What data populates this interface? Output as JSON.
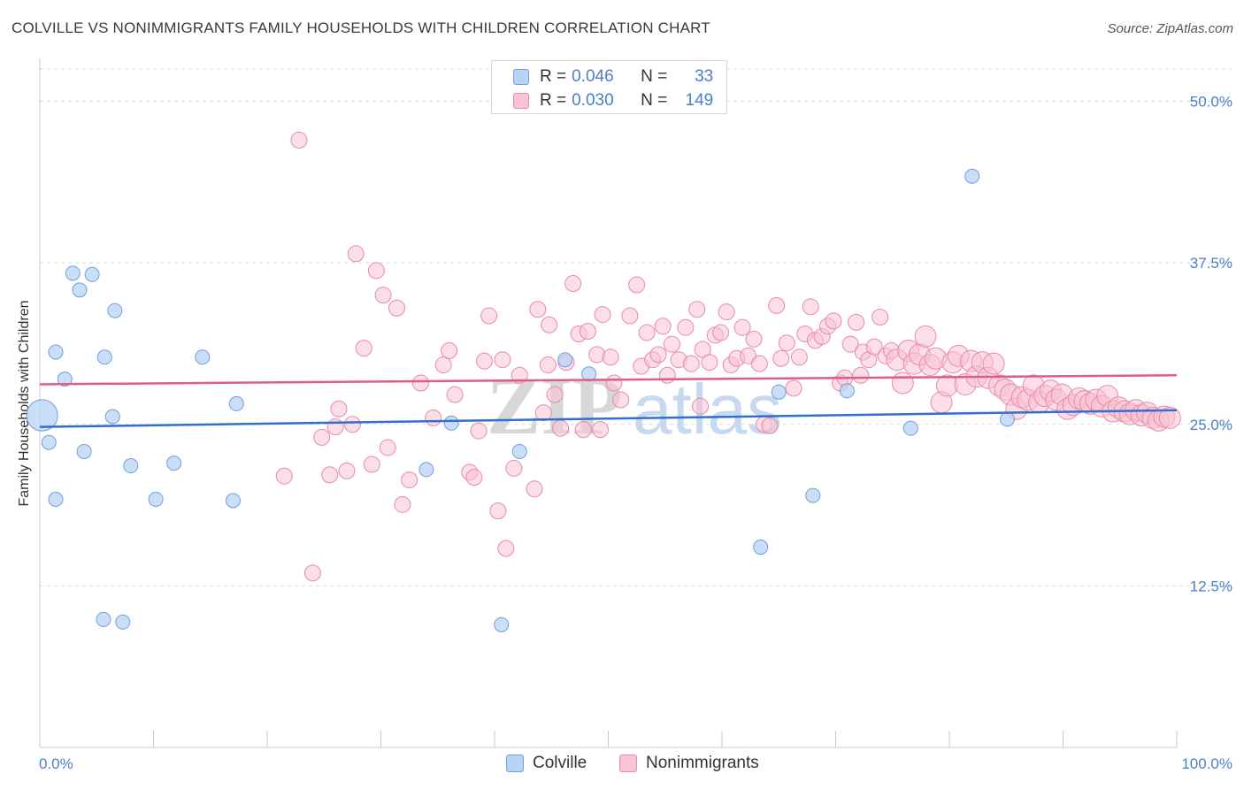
{
  "header": {
    "title": "COLVILLE VS NONIMMIGRANTS FAMILY HOUSEHOLDS WITH CHILDREN CORRELATION CHART",
    "source": "Source: ZipAtlas.com"
  },
  "watermark": {
    "part1": "ZIP",
    "part2": "atlas"
  },
  "legend_top": {
    "rows": [
      {
        "r_label": "R =",
        "r_value": "0.046",
        "n_label": "N =",
        "n_value": "33"
      },
      {
        "r_label": "R =",
        "r_value": "0.030",
        "n_label": "N =",
        "n_value": "149"
      }
    ]
  },
  "legend_bottom": {
    "items": [
      "Colville",
      "Nonimmigrants"
    ]
  },
  "colors": {
    "colville_fill": "#b9d3f4",
    "colville_stroke": "#6f9fdc",
    "colville_line": "#2f6fcf",
    "nonimm_fill": "#f8c3d2",
    "nonimm_stroke": "#e98aa8",
    "nonimm_line": "#e05c88",
    "axis_text": "#4a7fc7",
    "grid": "#d9d9d9"
  },
  "chart_data": {
    "type": "scatter",
    "title": "COLVILLE VS NONIMMIGRANTS FAMILY HOUSEHOLDS WITH CHILDREN CORRELATION CHART",
    "xlabel": "",
    "ylabel": "Family Households with Children",
    "xlim": [
      0,
      100
    ],
    "ylim": [
      0,
      52.5
    ],
    "x_tick_labels": [
      "0.0%",
      "100.0%"
    ],
    "y_ticks": [
      12.5,
      25.0,
      37.5,
      50.0
    ],
    "y_tick_labels": [
      "12.5%",
      "25.0%",
      "37.5%",
      "50.0%"
    ],
    "grid": true,
    "legend_position": "top-center",
    "series": [
      {
        "name": "Colville",
        "r": 0.046,
        "n": 33,
        "trend": {
          "x": [
            0,
            100
          ],
          "y": [
            24.8,
            26.1
          ]
        },
        "points": [
          {
            "x": 0.2,
            "y": 25.7,
            "s": 2.2
          },
          {
            "x": 0.8,
            "y": 23.6,
            "s": 1
          },
          {
            "x": 1.4,
            "y": 19.2,
            "s": 1
          },
          {
            "x": 1.4,
            "y": 30.6,
            "s": 1
          },
          {
            "x": 2.2,
            "y": 28.5,
            "s": 1
          },
          {
            "x": 2.9,
            "y": 36.7,
            "s": 1
          },
          {
            "x": 3.5,
            "y": 35.4,
            "s": 1
          },
          {
            "x": 3.9,
            "y": 22.9,
            "s": 1
          },
          {
            "x": 4.6,
            "y": 36.6,
            "s": 1
          },
          {
            "x": 5.6,
            "y": 9.9,
            "s": 1
          },
          {
            "x": 5.7,
            "y": 30.2,
            "s": 1
          },
          {
            "x": 6.4,
            "y": 25.6,
            "s": 1
          },
          {
            "x": 6.6,
            "y": 33.8,
            "s": 1
          },
          {
            "x": 7.3,
            "y": 9.7,
            "s": 1
          },
          {
            "x": 8.0,
            "y": 21.8,
            "s": 1
          },
          {
            "x": 10.2,
            "y": 19.2,
            "s": 1
          },
          {
            "x": 11.8,
            "y": 22.0,
            "s": 1
          },
          {
            "x": 14.3,
            "y": 30.2,
            "s": 1
          },
          {
            "x": 17.0,
            "y": 19.1,
            "s": 1
          },
          {
            "x": 17.3,
            "y": 26.6,
            "s": 1
          },
          {
            "x": 34.0,
            "y": 21.5,
            "s": 1
          },
          {
            "x": 36.2,
            "y": 25.1,
            "s": 1
          },
          {
            "x": 40.6,
            "y": 9.5,
            "s": 1
          },
          {
            "x": 42.2,
            "y": 22.9,
            "s": 1
          },
          {
            "x": 46.2,
            "y": 30.0,
            "s": 1
          },
          {
            "x": 48.3,
            "y": 28.9,
            "s": 1
          },
          {
            "x": 63.4,
            "y": 15.5,
            "s": 1
          },
          {
            "x": 65.0,
            "y": 27.5,
            "s": 1
          },
          {
            "x": 68.0,
            "y": 19.5,
            "s": 1
          },
          {
            "x": 71.0,
            "y": 27.6,
            "s": 1
          },
          {
            "x": 76.6,
            "y": 24.7,
            "s": 1
          },
          {
            "x": 82.0,
            "y": 44.2,
            "s": 1
          },
          {
            "x": 85.1,
            "y": 25.4,
            "s": 1
          }
        ]
      },
      {
        "name": "Nonimmigrants",
        "r": 0.03,
        "n": 149,
        "trend": {
          "x": [
            0,
            100
          ],
          "y": [
            28.1,
            28.8
          ]
        },
        "points": [
          {
            "x": 22.8,
            "y": 47.0
          },
          {
            "x": 21.5,
            "y": 21.0
          },
          {
            "x": 24.0,
            "y": 13.5
          },
          {
            "x": 24.8,
            "y": 24.0
          },
          {
            "x": 25.5,
            "y": 21.1
          },
          {
            "x": 26.0,
            "y": 24.8
          },
          {
            "x": 26.3,
            "y": 26.2
          },
          {
            "x": 27.0,
            "y": 21.4
          },
          {
            "x": 27.5,
            "y": 25.0
          },
          {
            "x": 27.8,
            "y": 38.2
          },
          {
            "x": 28.5,
            "y": 30.9
          },
          {
            "x": 29.2,
            "y": 21.9
          },
          {
            "x": 29.6,
            "y": 36.9
          },
          {
            "x": 30.2,
            "y": 35.0
          },
          {
            "x": 30.6,
            "y": 23.2
          },
          {
            "x": 31.4,
            "y": 34.0
          },
          {
            "x": 32.5,
            "y": 20.7
          },
          {
            "x": 33.5,
            "y": 28.2
          },
          {
            "x": 34.6,
            "y": 25.5
          },
          {
            "x": 35.5,
            "y": 29.6
          },
          {
            "x": 36.0,
            "y": 30.7
          },
          {
            "x": 36.5,
            "y": 27.3
          },
          {
            "x": 37.8,
            "y": 21.3
          },
          {
            "x": 38.2,
            "y": 20.9
          },
          {
            "x": 38.6,
            "y": 24.5
          },
          {
            "x": 39.5,
            "y": 33.4
          },
          {
            "x": 40.3,
            "y": 18.3
          },
          {
            "x": 40.7,
            "y": 30.0
          },
          {
            "x": 41.0,
            "y": 15.4
          },
          {
            "x": 41.7,
            "y": 21.6
          },
          {
            "x": 42.2,
            "y": 28.8
          },
          {
            "x": 43.5,
            "y": 20.0
          },
          {
            "x": 43.8,
            "y": 33.9
          },
          {
            "x": 44.3,
            "y": 25.9
          },
          {
            "x": 44.7,
            "y": 29.6
          },
          {
            "x": 45.3,
            "y": 27.3
          },
          {
            "x": 45.8,
            "y": 24.7
          },
          {
            "x": 46.3,
            "y": 29.8
          },
          {
            "x": 46.9,
            "y": 35.9
          },
          {
            "x": 47.4,
            "y": 32.0
          },
          {
            "x": 47.8,
            "y": 24.6
          },
          {
            "x": 48.2,
            "y": 32.2
          },
          {
            "x": 49.0,
            "y": 30.4
          },
          {
            "x": 49.5,
            "y": 33.5
          },
          {
            "x": 50.2,
            "y": 30.2
          },
          {
            "x": 50.5,
            "y": 28.2
          },
          {
            "x": 51.1,
            "y": 26.9
          },
          {
            "x": 51.9,
            "y": 33.4
          },
          {
            "x": 52.5,
            "y": 35.8
          },
          {
            "x": 52.9,
            "y": 29.5
          },
          {
            "x": 53.4,
            "y": 32.1
          },
          {
            "x": 53.9,
            "y": 30.0
          },
          {
            "x": 54.4,
            "y": 30.4
          },
          {
            "x": 54.8,
            "y": 32.6
          },
          {
            "x": 55.2,
            "y": 28.8
          },
          {
            "x": 55.6,
            "y": 31.2
          },
          {
            "x": 56.2,
            "y": 30.0
          },
          {
            "x": 56.8,
            "y": 32.5
          },
          {
            "x": 57.3,
            "y": 29.7
          },
          {
            "x": 57.8,
            "y": 33.9
          },
          {
            "x": 58.3,
            "y": 30.8
          },
          {
            "x": 58.9,
            "y": 29.8
          },
          {
            "x": 59.4,
            "y": 31.9
          },
          {
            "x": 59.9,
            "y": 32.1
          },
          {
            "x": 60.4,
            "y": 33.7
          },
          {
            "x": 60.8,
            "y": 29.6
          },
          {
            "x": 61.3,
            "y": 30.1
          },
          {
            "x": 61.8,
            "y": 32.5
          },
          {
            "x": 62.3,
            "y": 30.3
          },
          {
            "x": 62.8,
            "y": 31.6
          },
          {
            "x": 63.3,
            "y": 29.7
          },
          {
            "x": 63.7,
            "y": 25.0
          },
          {
            "x": 64.2,
            "y": 24.9
          },
          {
            "x": 64.8,
            "y": 34.2
          },
          {
            "x": 65.2,
            "y": 30.1
          },
          {
            "x": 65.7,
            "y": 31.3
          },
          {
            "x": 66.3,
            "y": 27.8
          },
          {
            "x": 66.8,
            "y": 30.2
          },
          {
            "x": 67.3,
            "y": 32.0
          },
          {
            "x": 67.8,
            "y": 34.1
          },
          {
            "x": 68.2,
            "y": 31.5
          },
          {
            "x": 68.8,
            "y": 31.8
          },
          {
            "x": 69.3,
            "y": 32.6
          },
          {
            "x": 69.8,
            "y": 33.0
          },
          {
            "x": 70.4,
            "y": 28.2
          },
          {
            "x": 70.8,
            "y": 28.6
          },
          {
            "x": 71.3,
            "y": 31.2
          },
          {
            "x": 71.8,
            "y": 32.9
          },
          {
            "x": 72.4,
            "y": 30.6
          },
          {
            "x": 72.9,
            "y": 30.0
          },
          {
            "x": 73.4,
            "y": 31.0
          },
          {
            "x": 73.9,
            "y": 33.3
          },
          {
            "x": 74.4,
            "y": 30.3
          },
          {
            "x": 74.9,
            "y": 30.7
          },
          {
            "x": 75.4,
            "y": 30.0
          },
          {
            "x": 75.9,
            "y": 28.2
          },
          {
            "x": 76.4,
            "y": 30.7
          },
          {
            "x": 76.9,
            "y": 29.7
          },
          {
            "x": 77.4,
            "y": 30.4
          },
          {
            "x": 77.9,
            "y": 31.8
          },
          {
            "x": 78.3,
            "y": 29.6
          },
          {
            "x": 78.8,
            "y": 30.1
          },
          {
            "x": 79.3,
            "y": 26.7
          },
          {
            "x": 79.8,
            "y": 28.0
          },
          {
            "x": 80.3,
            "y": 29.8
          },
          {
            "x": 80.8,
            "y": 30.3
          },
          {
            "x": 81.4,
            "y": 28.1
          },
          {
            "x": 81.9,
            "y": 29.9
          },
          {
            "x": 82.4,
            "y": 28.7
          },
          {
            "x": 82.9,
            "y": 29.8
          },
          {
            "x": 83.4,
            "y": 28.6
          },
          {
            "x": 83.9,
            "y": 29.7
          },
          {
            "x": 84.4,
            "y": 28.0
          },
          {
            "x": 84.9,
            "y": 27.7
          },
          {
            "x": 85.4,
            "y": 27.3
          },
          {
            "x": 85.9,
            "y": 26.2
          },
          {
            "x": 86.4,
            "y": 27.1
          },
          {
            "x": 86.9,
            "y": 26.9
          },
          {
            "x": 87.4,
            "y": 28.0
          },
          {
            "x": 87.9,
            "y": 26.7
          },
          {
            "x": 88.4,
            "y": 27.2
          },
          {
            "x": 88.9,
            "y": 27.6
          },
          {
            "x": 89.4,
            "y": 26.9
          },
          {
            "x": 89.9,
            "y": 27.3
          },
          {
            "x": 90.4,
            "y": 26.2
          },
          {
            "x": 90.9,
            "y": 26.5
          },
          {
            "x": 91.4,
            "y": 27.0
          },
          {
            "x": 91.9,
            "y": 26.8
          },
          {
            "x": 92.4,
            "y": 26.6
          },
          {
            "x": 92.9,
            "y": 26.9
          },
          {
            "x": 93.4,
            "y": 26.4
          },
          {
            "x": 93.9,
            "y": 27.2
          },
          {
            "x": 94.4,
            "y": 26.0
          },
          {
            "x": 94.9,
            "y": 26.3
          },
          {
            "x": 95.4,
            "y": 26.0
          },
          {
            "x": 95.9,
            "y": 25.8
          },
          {
            "x": 96.4,
            "y": 26.1
          },
          {
            "x": 96.9,
            "y": 25.7
          },
          {
            "x": 97.4,
            "y": 25.9
          },
          {
            "x": 97.9,
            "y": 25.5
          },
          {
            "x": 98.4,
            "y": 25.3
          },
          {
            "x": 98.9,
            "y": 25.6
          },
          {
            "x": 99.4,
            "y": 25.5
          },
          {
            "x": 72.2,
            "y": 28.8
          },
          {
            "x": 49.3,
            "y": 24.6
          },
          {
            "x": 31.9,
            "y": 18.8
          },
          {
            "x": 39.1,
            "y": 29.9
          },
          {
            "x": 44.8,
            "y": 32.7
          },
          {
            "x": 58.1,
            "y": 26.4
          }
        ]
      }
    ]
  }
}
